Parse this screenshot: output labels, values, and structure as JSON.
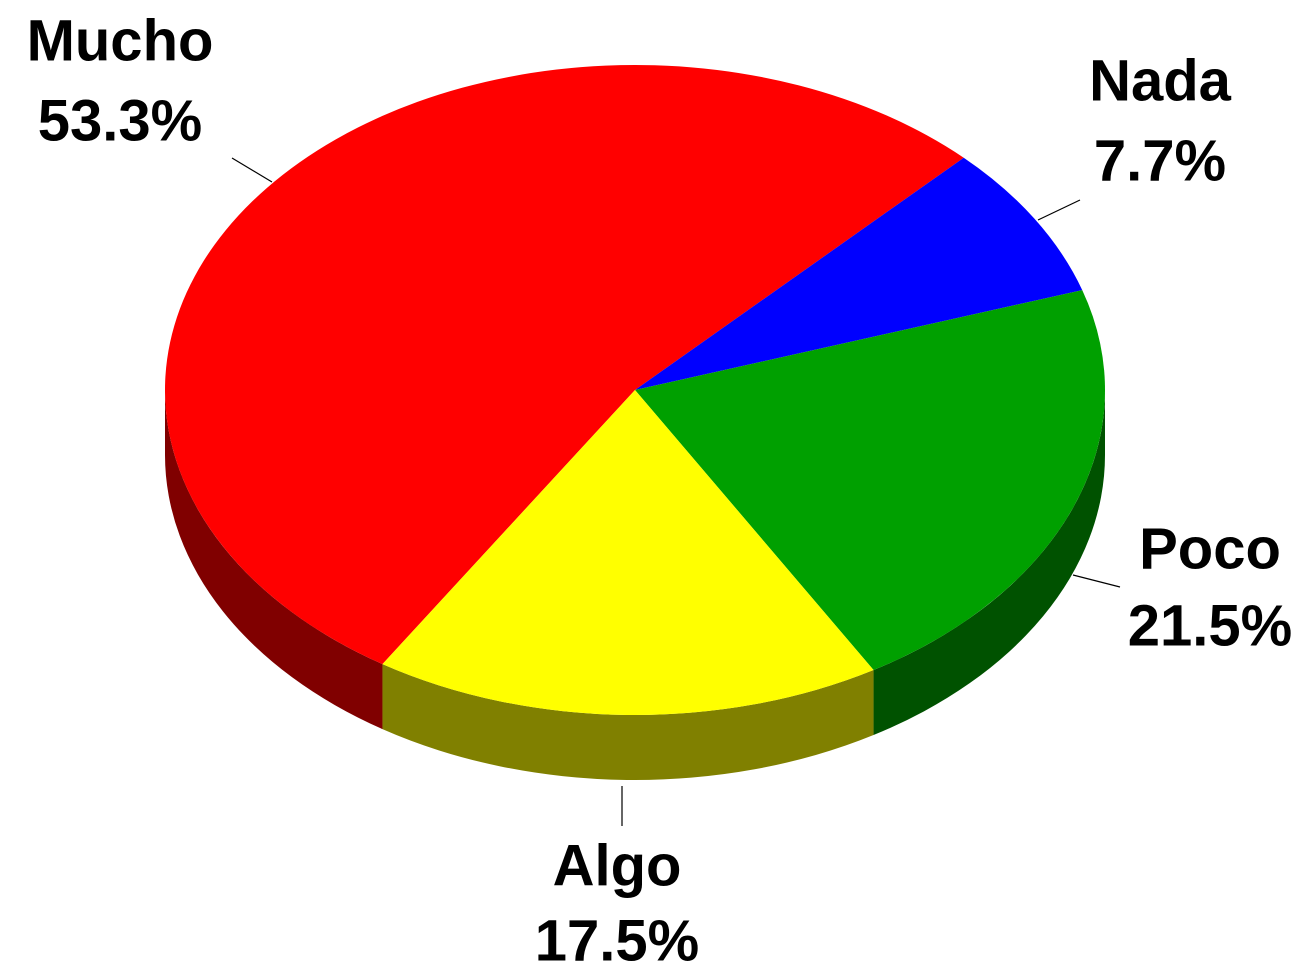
{
  "chart_data": {
    "type": "pie",
    "categories": [
      "Mucho",
      "Nada",
      "Poco",
      "Algo"
    ],
    "values": [
      53.3,
      7.7,
      21.5,
      17.5
    ],
    "value_labels": [
      "53.3%",
      "7.7%",
      "21.5%",
      "17.5%"
    ],
    "colors": [
      "#ff0000",
      "#0000ff",
      "#00a000",
      "#ffff00"
    ],
    "side_colors": [
      "#800000",
      "#000080",
      "#005200",
      "#808000"
    ]
  }
}
